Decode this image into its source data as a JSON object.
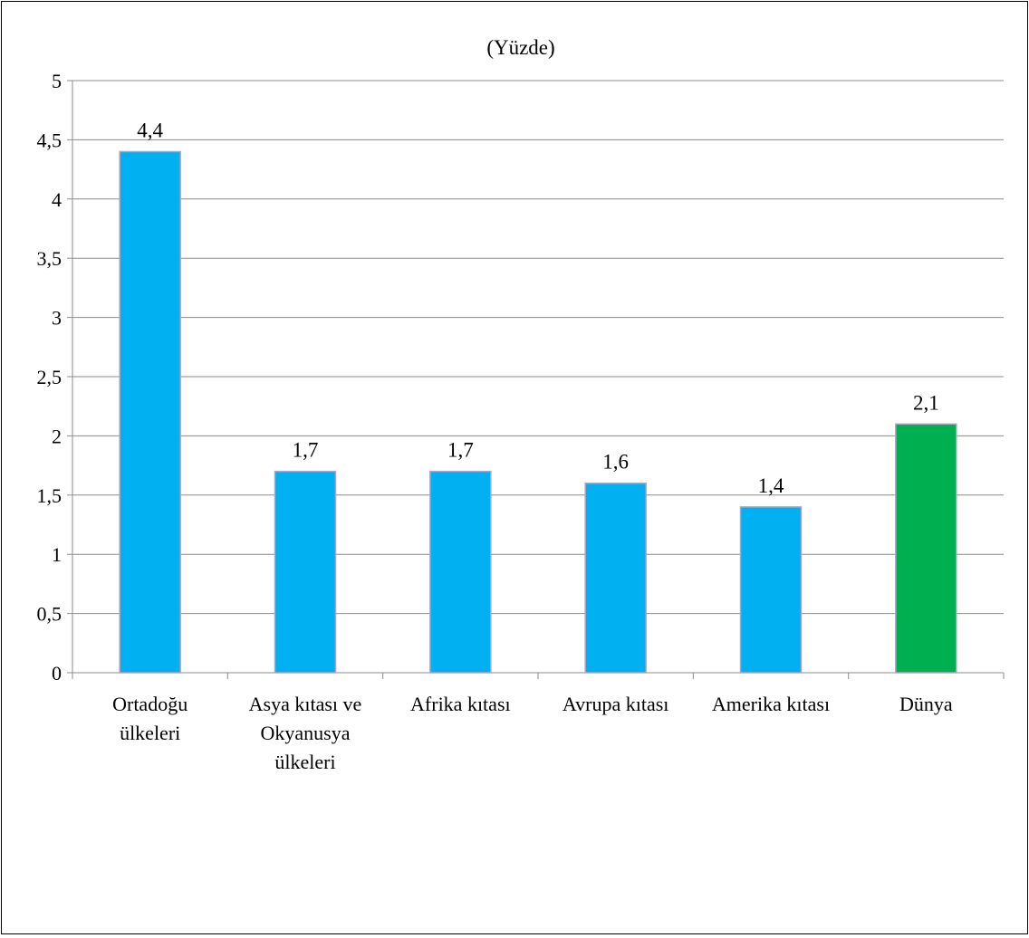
{
  "chart_data": {
    "type": "bar",
    "title": "(Yüzde)",
    "xlabel": "",
    "ylabel": "",
    "categories": [
      [
        "Ortadoğu",
        "ülkeleri"
      ],
      [
        "Asya kıtası ve",
        "Okyanusya",
        "ülkeleri"
      ],
      [
        "Afrika kıtası"
      ],
      [
        "Avrupa kıtası"
      ],
      [
        "Amerika kıtası"
      ],
      [
        "Dünya"
      ]
    ],
    "values": [
      4.4,
      1.7,
      1.7,
      1.6,
      1.4,
      2.1
    ],
    "value_labels": [
      "4,4",
      "1,7",
      "1,7",
      "1,6",
      "1,4",
      "2,1"
    ],
    "ylim": [
      0,
      5
    ],
    "yticks": [
      0,
      0.5,
      1,
      1.5,
      2,
      2.5,
      3,
      3.5,
      4,
      4.5,
      5
    ],
    "ytick_labels": [
      "0",
      "0,5",
      "1",
      "1,5",
      "2",
      "2,5",
      "3",
      "3,5",
      "4",
      "4,5",
      "5"
    ],
    "grid": true,
    "legend": "none",
    "bar_colors": [
      "#00B0F0",
      "#00B0F0",
      "#00B0F0",
      "#00B0F0",
      "#00B0F0",
      "#00B050"
    ],
    "bar_edge_color": "#B3A2C7",
    "grid_color": "#8C8C8C"
  }
}
